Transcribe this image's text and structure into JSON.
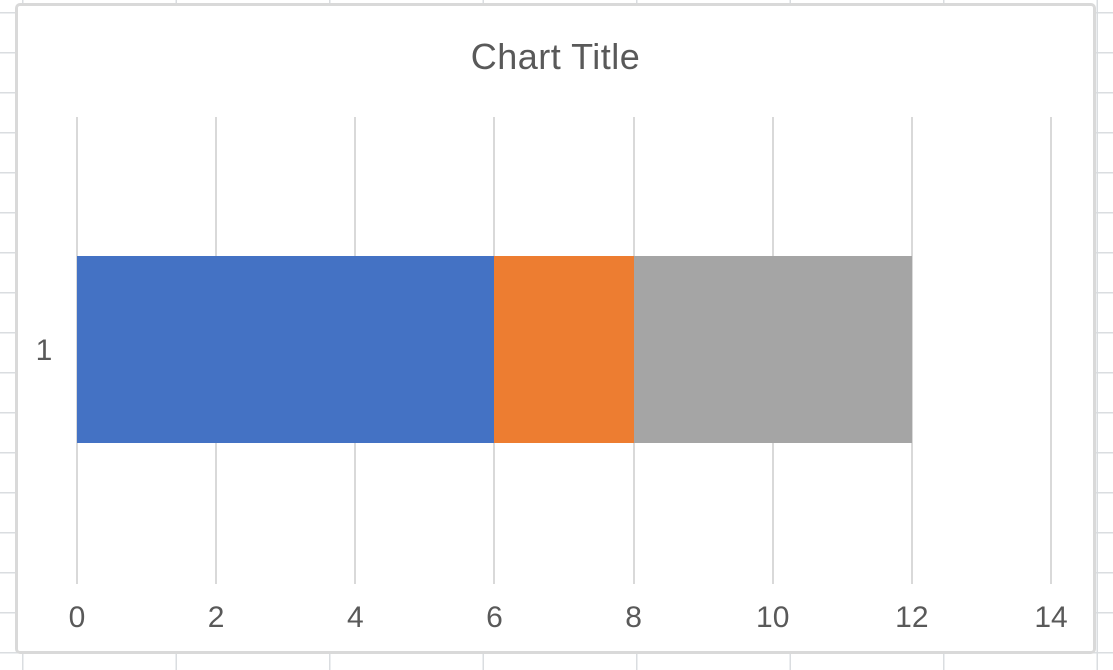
{
  "chart_data": {
    "type": "bar",
    "orientation": "horizontal",
    "stacked": true,
    "title": "Chart Title",
    "categories": [
      "1"
    ],
    "series": [
      {
        "values": [
          6
        ],
        "color": "#4472C4"
      },
      {
        "values": [
          2
        ],
        "color": "#ED7D31"
      },
      {
        "values": [
          4
        ],
        "color": "#A5A5A5"
      }
    ],
    "xlim": [
      0,
      14
    ],
    "x_ticks": [
      "0",
      "2",
      "4",
      "6",
      "8",
      "10",
      "12",
      "14"
    ],
    "grid": true,
    "legend": "none"
  },
  "colors": {
    "text": "#595959",
    "gridline": "#D9D9D9",
    "chart_border": "#D9D9D9",
    "sheet_line": "#DADDE0",
    "background": "#FFFFFF"
  }
}
